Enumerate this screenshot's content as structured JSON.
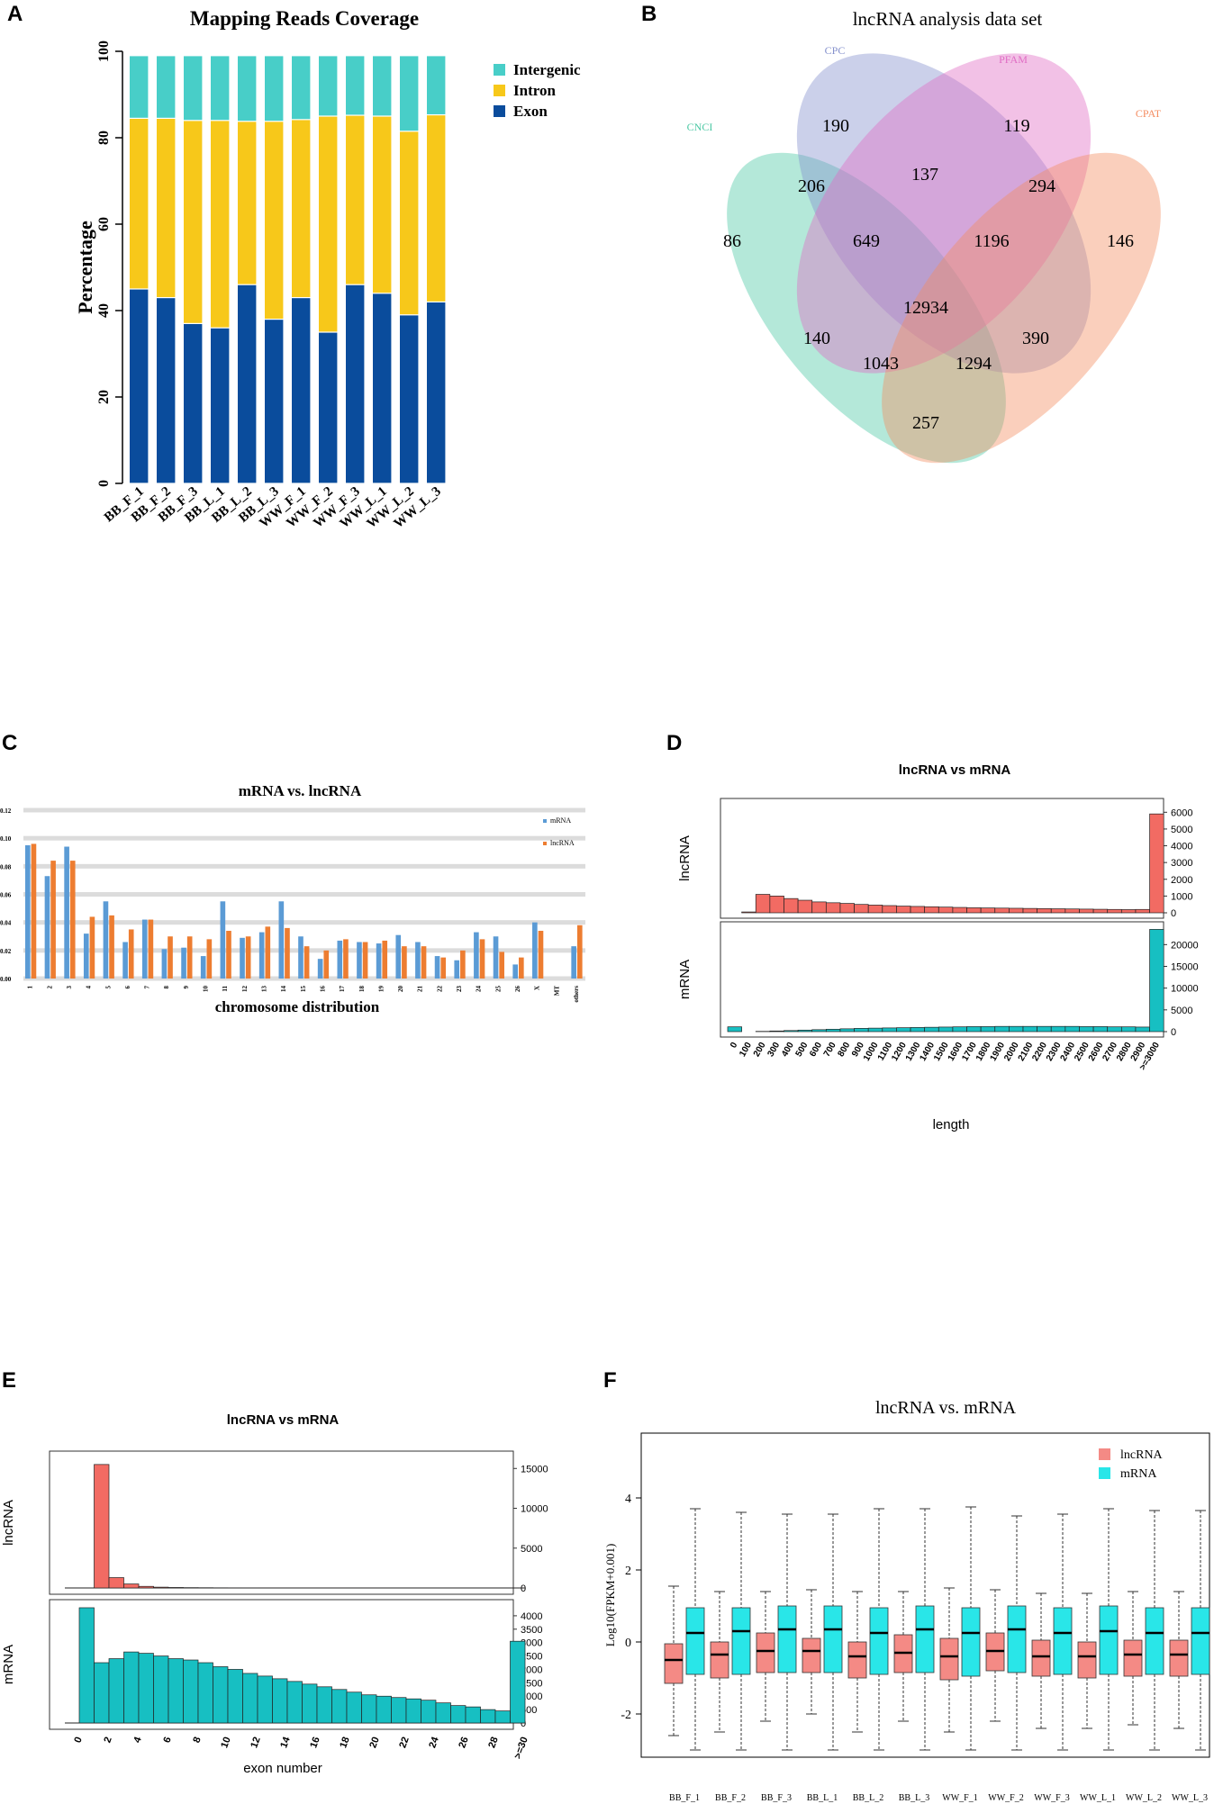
{
  "panels": {
    "a": "A",
    "b": "B",
    "c": "C",
    "d": "D",
    "e": "E",
    "f": "F"
  },
  "chart_data": [
    {
      "id": "A",
      "type": "bar",
      "stacked": true,
      "title": "Mapping Reads Coverage",
      "ylabel": "Percentage",
      "xlabel": "",
      "ylim": [
        0,
        100
      ],
      "yticks": [
        0,
        20,
        40,
        60,
        80,
        100
      ],
      "categories": [
        "BB_F_1",
        "BB_F_2",
        "BB_F_3",
        "BB_L_1",
        "BB_L_2",
        "BB_L_3",
        "WW_F_1",
        "WW_F_2",
        "WW_F_3",
        "WW_L_1",
        "WW_L_2",
        "WW_L_3"
      ],
      "legend_position": "top-right",
      "series": [
        {
          "name": "Exon",
          "color": "#0a4c9c",
          "values": [
            45,
            43,
            37,
            36,
            46,
            38,
            43,
            35,
            46,
            44,
            39,
            42
          ]
        },
        {
          "name": "Intron",
          "color": "#f7c81a",
          "values": [
            39.5,
            41.5,
            47,
            48,
            37.8,
            45.8,
            41.2,
            50,
            39.2,
            41,
            42.5,
            43.3
          ]
        },
        {
          "name": "Intergenic",
          "color": "#48cec8",
          "values": [
            14.5,
            14.5,
            15,
            15,
            15.2,
            15.2,
            14.8,
            14,
            13.8,
            14,
            17.5,
            13.7
          ]
        }
      ]
    },
    {
      "id": "B",
      "type": "venn",
      "title": "lncRNA analysis data set",
      "sets": [
        {
          "name": "CNCI",
          "color": "#4cc8a4"
        },
        {
          "name": "CPC",
          "color": "#8490cc"
        },
        {
          "name": "PFAM",
          "color": "#e06cc4"
        },
        {
          "name": "CPAT",
          "color": "#f48c60"
        }
      ],
      "regions": [
        {
          "sets": [
            "CNCI"
          ],
          "value": "86"
        },
        {
          "sets": [
            "CPC"
          ],
          "value": "190"
        },
        {
          "sets": [
            "PFAM"
          ],
          "value": "119"
        },
        {
          "sets": [
            "CPAT"
          ],
          "value": "146"
        },
        {
          "sets": [
            "CNCI",
            "CPC"
          ],
          "value": "206"
        },
        {
          "sets": [
            "CPC",
            "PFAM"
          ],
          "value": "137"
        },
        {
          "sets": [
            "PFAM",
            "CPAT"
          ],
          "value": "294"
        },
        {
          "sets": [
            "CNCI",
            "CPC",
            "PFAM"
          ],
          "value": "649"
        },
        {
          "sets": [
            "CPC",
            "PFAM",
            "CPAT"
          ],
          "value": "1196"
        },
        {
          "sets": [
            "CNCI",
            "CPC",
            "PFAM",
            "CPAT"
          ],
          "value": "12934"
        },
        {
          "sets": [
            "CNCI",
            "PFAM"
          ],
          "value": "140"
        },
        {
          "sets": [
            "CPC",
            "CPAT"
          ],
          "value": "390"
        },
        {
          "sets": [
            "CNCI",
            "PFAM",
            "CPAT"
          ],
          "value": "1043"
        },
        {
          "sets": [
            "CNCI",
            "CPC",
            "CPAT"
          ],
          "value": "1294"
        },
        {
          "sets": [
            "CNCI",
            "CPAT"
          ],
          "value": "257"
        }
      ]
    },
    {
      "id": "C",
      "type": "bar",
      "title": "mRNA vs. lncRNA",
      "xlabel": "chromosome distribution",
      "ylabel": "",
      "ylim": [
        0,
        0.12
      ],
      "yticks": [
        "0.00",
        "0.02",
        "0.04",
        "0.06",
        "0.08",
        "0.10",
        "0.12"
      ],
      "categories": [
        "1",
        "2",
        "3",
        "4",
        "5",
        "6",
        "7",
        "8",
        "9",
        "10",
        "11",
        "12",
        "13",
        "14",
        "15",
        "16",
        "17",
        "18",
        "19",
        "20",
        "21",
        "22",
        "23",
        "24",
        "25",
        "26",
        "X",
        "MT",
        "others"
      ],
      "legend_position": "top-right",
      "series": [
        {
          "name": "mRNA",
          "color": "#5b9bd5",
          "values": [
            0.095,
            0.073,
            0.094,
            0.032,
            0.055,
            0.026,
            0.042,
            0.021,
            0.022,
            0.016,
            0.055,
            0.029,
            0.033,
            0.055,
            0.03,
            0.014,
            0.027,
            0.026,
            0.025,
            0.031,
            0.026,
            0.016,
            0.013,
            0.033,
            0.03,
            0.01,
            0.04,
            0,
            0.023
          ]
        },
        {
          "name": "lncRNA",
          "color": "#ed7d31",
          "values": [
            0.096,
            0.084,
            0.084,
            0.044,
            0.045,
            0.035,
            0.042,
            0.03,
            0.03,
            0.028,
            0.034,
            0.03,
            0.037,
            0.036,
            0.023,
            0.02,
            0.028,
            0.026,
            0.027,
            0.023,
            0.023,
            0.015,
            0.02,
            0.028,
            0.019,
            0.015,
            0.034,
            0,
            0.038
          ]
        }
      ]
    },
    {
      "id": "D",
      "type": "bar",
      "title": "lncRNA vs mRNA",
      "xlabel": "length",
      "categories": [
        "0",
        "100",
        "200",
        "300",
        "400",
        "500",
        "600",
        "700",
        "800",
        "900",
        "1000",
        "1100",
        "1200",
        "1300",
        "1400",
        "1500",
        "1600",
        "1700",
        "1800",
        "1900",
        "2000",
        "2100",
        "2200",
        "2300",
        "2400",
        "2500",
        "2600",
        "2700",
        "2800",
        "2900",
        ">=3000"
      ],
      "series": [
        {
          "name": "lncRNA",
          "color": "#f26b63",
          "ylim": [
            0,
            6500
          ],
          "yticks": [
            0,
            1000,
            2000,
            3000,
            4000,
            5000,
            6000
          ],
          "values": [
            0,
            50,
            1100,
            1000,
            850,
            750,
            650,
            600,
            560,
            500,
            460,
            430,
            400,
            380,
            360,
            340,
            320,
            300,
            290,
            280,
            270,
            260,
            250,
            240,
            230,
            220,
            210,
            200,
            190,
            200,
            5900
          ]
        },
        {
          "name": "mRNA",
          "color": "#17bfc2",
          "ylim": [
            0,
            24000
          ],
          "yticks": [
            0,
            5000,
            10000,
            15000,
            20000
          ],
          "values": [
            1100,
            0,
            60,
            150,
            250,
            350,
            450,
            550,
            650,
            750,
            800,
            850,
            900,
            950,
            1000,
            1050,
            1100,
            1150,
            1150,
            1200,
            1200,
            1200,
            1200,
            1200,
            1200,
            1150,
            1150,
            1100,
            1100,
            1050,
            23500
          ]
        }
      ]
    },
    {
      "id": "E",
      "type": "bar",
      "title": "lncRNA vs mRNA",
      "xlabel": "exon number",
      "xticks": [
        "0",
        "2",
        "4",
        "6",
        "8",
        "10",
        "12",
        "14",
        "16",
        "18",
        "20",
        "22",
        "24",
        "26",
        "28",
        ">=30"
      ],
      "x": [
        1,
        2,
        3,
        4,
        5,
        6,
        7,
        8,
        9,
        10,
        11,
        12,
        13,
        14,
        15,
        16,
        17,
        18,
        19,
        20,
        21,
        22,
        23,
        24,
        25,
        26,
        27,
        28,
        29,
        30
      ],
      "series": [
        {
          "name": "lncRNA",
          "color": "#f26b63",
          "ylim": [
            0,
            16500
          ],
          "yticks": [
            0,
            5000,
            10000,
            15000
          ],
          "values": [
            0,
            15500,
            1300,
            500,
            200,
            100,
            60,
            40,
            30,
            20,
            15,
            10,
            8,
            6,
            5,
            4,
            3,
            3,
            2,
            2,
            2,
            1,
            1,
            1,
            1,
            1,
            1,
            1,
            1,
            10
          ]
        },
        {
          "name": "mRNA",
          "color": "#17bfc2",
          "ylim": [
            0,
            4400
          ],
          "yticks": [
            0,
            500,
            1000,
            1500,
            2000,
            2500,
            3000,
            3500,
            4000
          ],
          "values": [
            4300,
            2250,
            2400,
            2650,
            2600,
            2500,
            2400,
            2350,
            2250,
            2100,
            2000,
            1850,
            1750,
            1650,
            1550,
            1450,
            1350,
            1250,
            1150,
            1050,
            1000,
            950,
            900,
            850,
            750,
            650,
            600,
            500,
            450,
            3050
          ]
        }
      ]
    },
    {
      "id": "F",
      "type": "box",
      "title": "lncRNA vs. mRNA",
      "ylabel": "Log10(FPKM+0.001)",
      "ylim": [
        -3.2,
        5.8
      ],
      "yticks": [
        -2,
        0,
        2,
        4
      ],
      "categories": [
        "BB_F_1",
        "BB_F_2",
        "BB_F_3",
        "BB_L_1",
        "BB_L_2",
        "BB_L_3",
        "WW_F_1",
        "WW_F_2",
        "WW_F_3",
        "WW_L_1",
        "WW_L_2",
        "WW_L_3"
      ],
      "legend_position": "top-right",
      "series": [
        {
          "name": "lncRNA",
          "color": "#f48a85",
          "boxes": [
            [
              -2.6,
              -1.15,
              -0.5,
              -0.05,
              1.55
            ],
            [
              -2.5,
              -1.0,
              -0.35,
              0.0,
              1.4
            ],
            [
              -2.2,
              -0.85,
              -0.25,
              0.25,
              1.4
            ],
            [
              -2.0,
              -0.85,
              -0.25,
              0.1,
              1.45
            ],
            [
              -2.5,
              -1.0,
              -0.4,
              0.0,
              1.4
            ],
            [
              -2.2,
              -0.85,
              -0.3,
              0.2,
              1.4
            ],
            [
              -2.5,
              -1.05,
              -0.4,
              0.1,
              1.5
            ],
            [
              -2.2,
              -0.8,
              -0.25,
              0.25,
              1.45
            ],
            [
              -2.4,
              -0.95,
              -0.4,
              0.05,
              1.35
            ],
            [
              -2.4,
              -1.0,
              -0.4,
              0.0,
              1.35
            ],
            [
              -2.3,
              -0.95,
              -0.35,
              0.05,
              1.4
            ],
            [
              -2.4,
              -0.95,
              -0.35,
              0.05,
              1.4
            ]
          ]
        },
        {
          "name": "mRNA",
          "color": "#29e6e8",
          "boxes": [
            [
              -3.0,
              -0.9,
              0.25,
              0.95,
              3.7
            ],
            [
              -3.0,
              -0.9,
              0.3,
              0.95,
              3.6
            ],
            [
              -3.0,
              -0.85,
              0.35,
              1.0,
              3.55
            ],
            [
              -3.0,
              -0.85,
              0.35,
              1.0,
              3.55
            ],
            [
              -3.0,
              -0.9,
              0.25,
              0.95,
              3.7
            ],
            [
              -3.0,
              -0.85,
              0.35,
              1.0,
              3.7
            ],
            [
              -3.0,
              -0.95,
              0.25,
              0.95,
              3.75
            ],
            [
              -3.0,
              -0.85,
              0.35,
              1.0,
              3.5
            ],
            [
              -3.0,
              -0.9,
              0.25,
              0.95,
              3.55
            ],
            [
              -3.0,
              -0.9,
              0.3,
              1.0,
              3.7
            ],
            [
              -3.0,
              -0.9,
              0.25,
              0.95,
              3.65
            ],
            [
              -3.0,
              -0.9,
              0.25,
              0.95,
              3.65
            ]
          ]
        }
      ]
    }
  ]
}
